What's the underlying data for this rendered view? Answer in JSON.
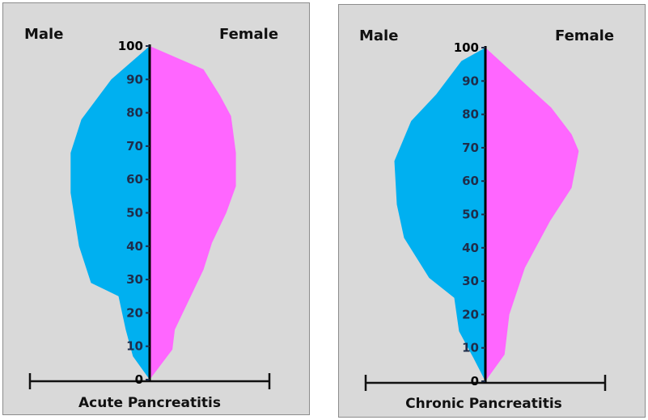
{
  "chart_data": [
    {
      "type": "area",
      "subtype": "population-pyramid",
      "title": "Acute Pancreatitis",
      "ylabel": "",
      "xlabel": "",
      "ylim": [
        0,
        100
      ],
      "yticks": [
        0,
        10,
        20,
        30,
        40,
        50,
        60,
        70,
        80,
        90,
        100
      ],
      "xaxis_units": "relative (unlabeled, fraction of half-axis)",
      "legend": {
        "left": "Male",
        "right": "Female"
      },
      "series": [
        {
          "name": "Male",
          "side": "left",
          "color": "#00b0f0",
          "points": [
            [
              100,
              0
            ],
            [
              90,
              0.32
            ],
            [
              78,
              0.57
            ],
            [
              68,
              0.66
            ],
            [
              56,
              0.66
            ],
            [
              40,
              0.59
            ],
            [
              29,
              0.49
            ],
            [
              25,
              0.26
            ],
            [
              15,
              0.2
            ],
            [
              7,
              0.14
            ],
            [
              0,
              0
            ]
          ]
        },
        {
          "name": "Female",
          "side": "right",
          "color": "#ff66ff",
          "points": [
            [
              100,
              0
            ],
            [
              93,
              0.45
            ],
            [
              85,
              0.59
            ],
            [
              79,
              0.68
            ],
            [
              68,
              0.72
            ],
            [
              58,
              0.72
            ],
            [
              50,
              0.64
            ],
            [
              41,
              0.52
            ],
            [
              33,
              0.45
            ],
            [
              15,
              0.21
            ],
            [
              9,
              0.19
            ],
            [
              0,
              0
            ]
          ]
        }
      ]
    },
    {
      "type": "area",
      "subtype": "population-pyramid",
      "title": "Chronic Pancreatitis",
      "ylabel": "",
      "xlabel": "",
      "ylim": [
        0,
        100
      ],
      "yticks": [
        0,
        10,
        20,
        30,
        40,
        50,
        60,
        70,
        80,
        90,
        100
      ],
      "xaxis_units": "relative (unlabeled, fraction of half-axis)",
      "legend": {
        "left": "Male",
        "right": "Female"
      },
      "series": [
        {
          "name": "Male",
          "side": "left",
          "color": "#00b0f0",
          "points": [
            [
              100,
              0
            ],
            [
              96,
              0.2
            ],
            [
              86,
              0.41
            ],
            [
              78,
              0.62
            ],
            [
              66,
              0.76
            ],
            [
              53,
              0.74
            ],
            [
              43,
              0.68
            ],
            [
              31,
              0.47
            ],
            [
              25,
              0.26
            ],
            [
              15,
              0.22
            ],
            [
              7,
              0.1
            ],
            [
              0,
              0
            ]
          ]
        },
        {
          "name": "Female",
          "side": "right",
          "color": "#ff66ff",
          "points": [
            [
              100,
              0
            ],
            [
              82,
              0.55
            ],
            [
              74,
              0.72
            ],
            [
              69,
              0.78
            ],
            [
              58,
              0.72
            ],
            [
              48,
              0.54
            ],
            [
              34,
              0.33
            ],
            [
              20,
              0.2
            ],
            [
              8,
              0.16
            ],
            [
              0,
              0
            ]
          ]
        }
      ]
    }
  ]
}
